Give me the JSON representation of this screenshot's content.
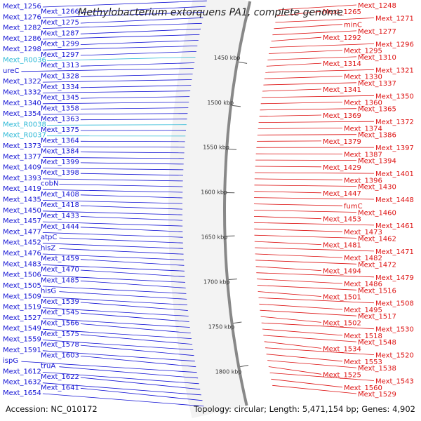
{
  "title": "Methylobacterium extorquens PA1, complete genome",
  "accession_text": "Accession: NC_010172",
  "stats_text": "Topology: circular; Length: 5,471,154 bp; Genes: 4,902",
  "colors": {
    "forward_strand": "#1212d4",
    "reverse_strand": "#dd1111",
    "rna_gene": "#2ab8d6",
    "backbone": "#888888",
    "tick": "#2a8a2a"
  },
  "kbp_ticks": [
    {
      "label": "1450 kbp"
    },
    {
      "label": "1500 kbp"
    },
    {
      "label": "1550 kbp"
    },
    {
      "label": "1600 kbp"
    },
    {
      "label": "1650 kbp"
    },
    {
      "label": "1700 kbp"
    },
    {
      "label": "1750 kbp"
    },
    {
      "label": "1800 kbp"
    }
  ],
  "left_labels": [
    {
      "text": "Mext_1256",
      "rna": false
    },
    {
      "text": "Mext_1266",
      "rna": false
    },
    {
      "text": "Mext_1276",
      "rna": false
    },
    {
      "text": "Mext_1275",
      "rna": false
    },
    {
      "text": "Mext_1282",
      "rna": false
    },
    {
      "text": "Mext_1287",
      "rna": false
    },
    {
      "text": "Mext_1286",
      "rna": false
    },
    {
      "text": "Mext_1299",
      "rna": false
    },
    {
      "text": "Mext_1298",
      "rna": false
    },
    {
      "text": "Mext_1297",
      "rna": false
    },
    {
      "text": "Mext_R0036",
      "rna": true
    },
    {
      "text": "Mext_1313",
      "rna": false
    },
    {
      "text": "ureC",
      "rna": false
    },
    {
      "text": "Mext_1328",
      "rna": false
    },
    {
      "text": "Mext_1322",
      "rna": false
    },
    {
      "text": "Mext_1334",
      "rna": false
    },
    {
      "text": "Mext_1332",
      "rna": false
    },
    {
      "text": "Mext_1345",
      "rna": false
    },
    {
      "text": "Mext_1340",
      "rna": false
    },
    {
      "text": "Mext_1358",
      "rna": false
    },
    {
      "text": "Mext_1354",
      "rna": false
    },
    {
      "text": "Mext_1363",
      "rna": false
    },
    {
      "text": "Mext_R0038",
      "rna": true
    },
    {
      "text": "Mext_1375",
      "rna": false
    },
    {
      "text": "Mext_R0037",
      "rna": true
    },
    {
      "text": "Mext_1364",
      "rna": false
    },
    {
      "text": "Mext_1373",
      "rna": false
    },
    {
      "text": "Mext_1384",
      "rna": false
    },
    {
      "text": "Mext_1377",
      "rna": false
    },
    {
      "text": "Mext_1399",
      "rna": false
    },
    {
      "text": "Mext_1409",
      "rna": false
    },
    {
      "text": "Mext_1398",
      "rna": false
    },
    {
      "text": "Mext_1393",
      "rna": false
    },
    {
      "text": "cobN",
      "rna": false
    },
    {
      "text": "Mext_1419",
      "rna": false
    },
    {
      "text": "Mext_1408",
      "rna": false
    },
    {
      "text": "Mext_1435",
      "rna": false
    },
    {
      "text": "Mext_1418",
      "rna": false
    },
    {
      "text": "Mext_1450",
      "rna": false
    },
    {
      "text": "Mext_1433",
      "rna": false
    },
    {
      "text": "Mext_1457",
      "rna": false
    },
    {
      "text": "Mext_1444",
      "rna": false
    },
    {
      "text": "Mext_1477",
      "rna": false
    },
    {
      "text": "atpC",
      "rna": false
    },
    {
      "text": "Mext_1452",
      "rna": false
    },
    {
      "text": "hisZ",
      "rna": false
    },
    {
      "text": "Mext_1476",
      "rna": false
    },
    {
      "text": "Mext_1459",
      "rna": false
    },
    {
      "text": "Mext_1483",
      "rna": false
    },
    {
      "text": "Mext_1470",
      "rna": false
    },
    {
      "text": "Mext_1506",
      "rna": false
    },
    {
      "text": "Mext_1485",
      "rna": false
    },
    {
      "text": "Mext_1505",
      "rna": false
    },
    {
      "text": "hisG",
      "rna": false
    },
    {
      "text": "Mext_1509",
      "rna": false
    },
    {
      "text": "Mext_1539",
      "rna": false
    },
    {
      "text": "Mext_1519",
      "rna": false
    },
    {
      "text": "Mext_1545",
      "rna": false
    },
    {
      "text": "Mext_1527",
      "rna": false
    },
    {
      "text": "Mext_1566",
      "rna": false
    },
    {
      "text": "Mext_1549",
      "rna": false
    },
    {
      "text": "Mext_1575",
      "rna": false
    },
    {
      "text": "Mext_1559",
      "rna": false
    },
    {
      "text": "Mext_1578",
      "rna": false
    },
    {
      "text": "Mext_1591",
      "rna": false
    },
    {
      "text": "Mext_1603",
      "rna": false
    },
    {
      "text": "ispG",
      "rna": false
    },
    {
      "text": "truA",
      "rna": false
    },
    {
      "text": "Mext_1612",
      "rna": false
    },
    {
      "text": "Mext_1622",
      "rna": false
    },
    {
      "text": "Mext_1632",
      "rna": false
    },
    {
      "text": "Mext_1641",
      "rna": false
    },
    {
      "text": "Mext_1654",
      "rna": false
    }
  ],
  "right_labels": [
    {
      "text": "Mext_1248"
    },
    {
      "text": "Mext_1265"
    },
    {
      "text": "Mext_1271"
    },
    {
      "text": "minC"
    },
    {
      "text": "Mext_1277"
    },
    {
      "text": "Mext_1292"
    },
    {
      "text": "Mext_1296"
    },
    {
      "text": "Mext_1295"
    },
    {
      "text": "Mext_1310"
    },
    {
      "text": "Mext_1314"
    },
    {
      "text": "Mext_1321"
    },
    {
      "text": "Mext_1330"
    },
    {
      "text": "Mext_1337"
    },
    {
      "text": "Mext_1341"
    },
    {
      "text": "Mext_1350"
    },
    {
      "text": "Mext_1360"
    },
    {
      "text": "Mext_1365"
    },
    {
      "text": "Mext_1369"
    },
    {
      "text": "Mext_1372"
    },
    {
      "text": "Mext_1374"
    },
    {
      "text": "Mext_1386"
    },
    {
      "text": "Mext_1379"
    },
    {
      "text": "Mext_1397"
    },
    {
      "text": "Mext_1387"
    },
    {
      "text": "Mext_1394"
    },
    {
      "text": "Mext_1429"
    },
    {
      "text": "Mext_1401"
    },
    {
      "text": "Mext_1396"
    },
    {
      "text": "Mext_1430"
    },
    {
      "text": "Mext_1447"
    },
    {
      "text": "Mext_1448"
    },
    {
      "text": "fumC"
    },
    {
      "text": "Mext_1460"
    },
    {
      "text": "Mext_1453"
    },
    {
      "text": "Mext_1461"
    },
    {
      "text": "Mext_1473"
    },
    {
      "text": "Mext_1462"
    },
    {
      "text": "Mext_1481"
    },
    {
      "text": "Mext_1471"
    },
    {
      "text": "Mext_1482"
    },
    {
      "text": "Mext_1472"
    },
    {
      "text": "Mext_1494"
    },
    {
      "text": "Mext_1479"
    },
    {
      "text": "Mext_1486"
    },
    {
      "text": "Mext_1516"
    },
    {
      "text": "Mext_1501"
    },
    {
      "text": "Mext_1508"
    },
    {
      "text": "Mext_1495"
    },
    {
      "text": "Mext_1517"
    },
    {
      "text": "Mext_1502"
    },
    {
      "text": "Mext_1530"
    },
    {
      "text": "Mext_1518"
    },
    {
      "text": "Mext_1548"
    },
    {
      "text": "Mext_1534"
    },
    {
      "text": "Mext_1520"
    },
    {
      "text": "Mext_1553"
    },
    {
      "text": "Mext_1538"
    },
    {
      "text": "Mext_1525"
    },
    {
      "text": "Mext_1543"
    },
    {
      "text": "Mext_1560"
    },
    {
      "text": "Mext_1529"
    }
  ]
}
